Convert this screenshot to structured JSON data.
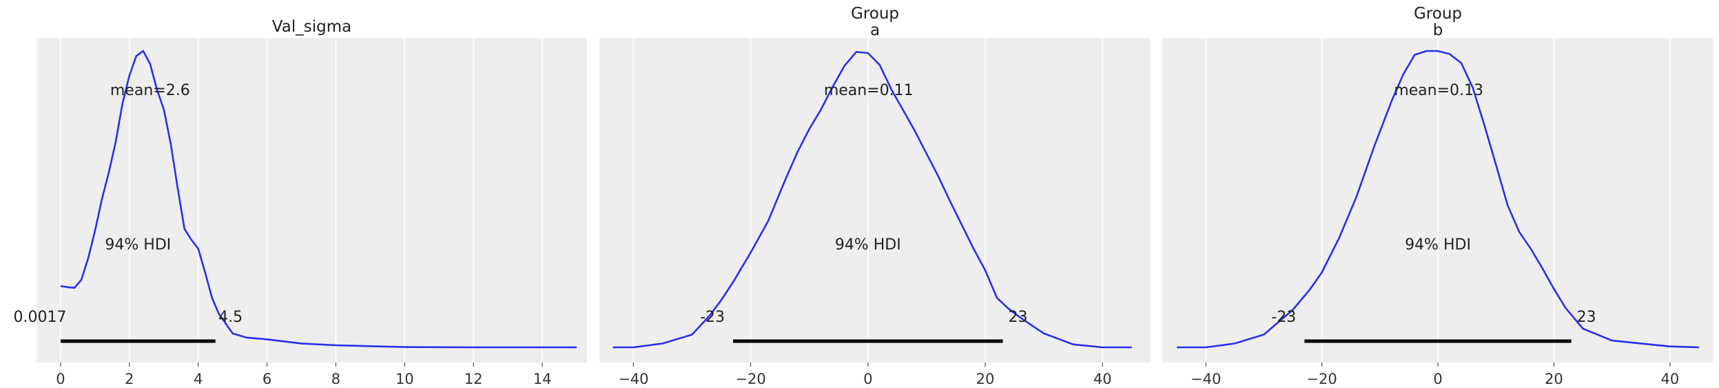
{
  "chart_data": [
    {
      "type": "line",
      "title_lines": [
        "Val_sigma"
      ],
      "xlim": [
        -0.7,
        15.3
      ],
      "xticks": [
        0,
        2,
        4,
        6,
        8,
        10,
        12,
        14
      ],
      "xtick_labels": [
        "0",
        "2",
        "4",
        "6",
        "8",
        "10",
        "12",
        "14"
      ],
      "density": {
        "x": [
          0,
          0.2,
          0.4,
          0.6,
          0.8,
          1.0,
          1.2,
          1.4,
          1.6,
          1.8,
          2.0,
          2.2,
          2.4,
          2.6,
          2.8,
          3.0,
          3.2,
          3.4,
          3.6,
          3.8,
          4.0,
          4.2,
          4.4,
          4.6,
          4.8,
          5.0,
          5.4,
          6.0,
          7.0,
          8.0,
          9.0,
          10.0,
          12.0,
          14.0,
          15.0
        ],
        "y": [
          0.207,
          0.203,
          0.201,
          0.227,
          0.3,
          0.393,
          0.5,
          0.59,
          0.693,
          0.823,
          0.917,
          0.983,
          1.0,
          0.957,
          0.87,
          0.803,
          0.687,
          0.54,
          0.4,
          0.363,
          0.333,
          0.253,
          0.167,
          0.113,
          0.08,
          0.047,
          0.033,
          0.027,
          0.013,
          0.007,
          0.004,
          0.001,
          0.0,
          0.0,
          0.0
        ]
      },
      "mean_label": "mean=2.6",
      "mean": 2.6,
      "hdi_label": "94% HDI",
      "hdi": [
        0.0017,
        4.5
      ],
      "hdi_low_label": "0.0017",
      "hdi_high_label": "4.5"
    },
    {
      "type": "line",
      "title_lines": [
        "Group",
        "a"
      ],
      "xlim": [
        -45.8,
        48.2
      ],
      "xticks": [
        -40,
        -20,
        0,
        20,
        40
      ],
      "xtick_labels": [
        "−40",
        "−20",
        "0",
        "20",
        "40"
      ],
      "density": {
        "x": [
          -43.5,
          -40,
          -35,
          -30,
          -27,
          -25,
          -23,
          -20,
          -17,
          -14,
          -12,
          -10,
          -8,
          -6,
          -4,
          -2,
          0,
          2,
          4,
          6,
          8,
          10,
          12,
          14,
          16,
          18,
          20,
          22,
          24,
          26,
          28,
          30,
          35,
          40,
          45
        ],
        "y": [
          0.0,
          0.0,
          0.013,
          0.043,
          0.107,
          0.16,
          0.22,
          0.32,
          0.427,
          0.57,
          0.66,
          0.737,
          0.803,
          0.88,
          0.95,
          0.997,
          0.993,
          0.953,
          0.87,
          0.8,
          0.73,
          0.653,
          0.577,
          0.493,
          0.413,
          0.333,
          0.26,
          0.167,
          0.13,
          0.1,
          0.073,
          0.047,
          0.01,
          0.0,
          0.0
        ]
      },
      "mean_label": "mean=0.11",
      "mean": 0.11,
      "hdi_label": "94% HDI",
      "hdi": [
        -23,
        23
      ],
      "hdi_low_label": "-23",
      "hdi_high_label": "23"
    },
    {
      "type": "line",
      "title_lines": [
        "Group",
        "b"
      ],
      "xlim": [
        -47.5,
        47.5
      ],
      "xticks": [
        -40,
        -20,
        0,
        20,
        40
      ],
      "xtick_labels": [
        "−40",
        "−20",
        "0",
        "20",
        "40"
      ],
      "density": {
        "x": [
          -45,
          -40,
          -35,
          -30,
          -25,
          -22,
          -20,
          -17,
          -14,
          -11,
          -8,
          -6,
          -4,
          -2,
          0,
          2,
          4,
          6,
          8,
          10,
          12,
          14,
          16,
          18,
          20,
          22,
          25,
          30,
          35,
          40,
          45
        ],
        "y": [
          0.0,
          0.0,
          0.013,
          0.043,
          0.127,
          0.197,
          0.253,
          0.37,
          0.51,
          0.677,
          0.83,
          0.92,
          0.987,
          1.0,
          1.0,
          0.99,
          0.96,
          0.877,
          0.75,
          0.617,
          0.48,
          0.39,
          0.333,
          0.267,
          0.197,
          0.133,
          0.063,
          0.023,
          0.013,
          0.003,
          0.0
        ]
      },
      "mean_label": "mean=0.13",
      "mean": 0.13,
      "hdi_label": "94% HDI",
      "hdi": [
        -23,
        23
      ],
      "hdi_low_label": "-23",
      "hdi_high_label": "23"
    }
  ]
}
